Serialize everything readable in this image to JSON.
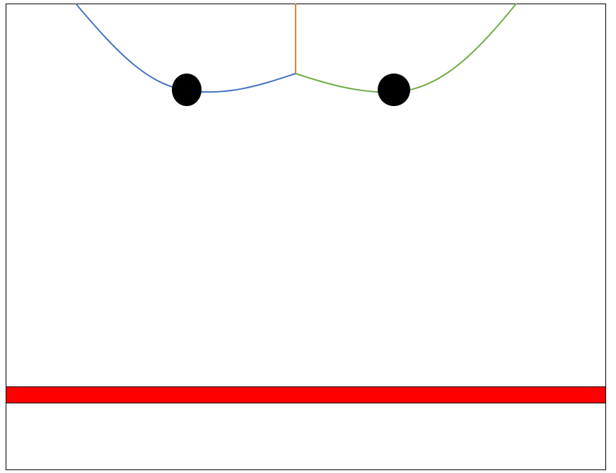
{
  "diagram": {
    "background_color": "#ffffff",
    "frame_color": "#000000",
    "elements": {
      "left_rope": {
        "color": "#4472c4"
      },
      "right_rope": {
        "color": "#70ad47"
      },
      "vertical_rope": {
        "color": "#ed7d31"
      },
      "left_ball": {
        "color": "#000000"
      },
      "right_ball": {
        "color": "#000000"
      },
      "floor_bar": {
        "color": "#ff0000",
        "border_color": "#000000"
      }
    }
  }
}
